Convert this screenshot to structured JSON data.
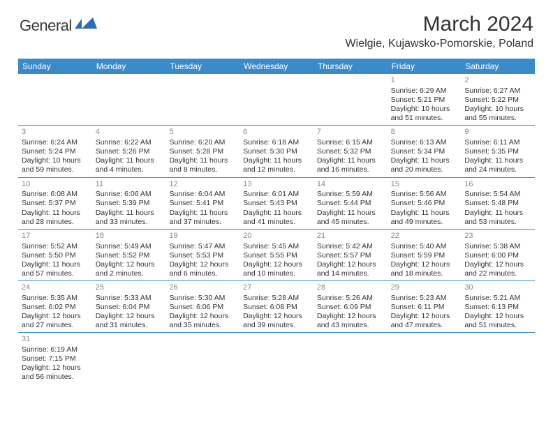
{
  "logo": {
    "text": "General",
    "icon_color": "#2a6db8"
  },
  "title": "March 2024",
  "location": "Wielgie, Kujawsko-Pomorskie, Poland",
  "header_bg": "#3b8bc9",
  "row_border": "#3b8bc9",
  "day_names": [
    "Sunday",
    "Monday",
    "Tuesday",
    "Wednesday",
    "Thursday",
    "Friday",
    "Saturday"
  ],
  "weeks": [
    [
      null,
      null,
      null,
      null,
      null,
      {
        "n": "1",
        "sunrise": "Sunrise: 6:29 AM",
        "sunset": "Sunset: 5:21 PM",
        "day1": "Daylight: 10 hours",
        "day2": "and 51 minutes."
      },
      {
        "n": "2",
        "sunrise": "Sunrise: 6:27 AM",
        "sunset": "Sunset: 5:22 PM",
        "day1": "Daylight: 10 hours",
        "day2": "and 55 minutes."
      }
    ],
    [
      {
        "n": "3",
        "sunrise": "Sunrise: 6:24 AM",
        "sunset": "Sunset: 5:24 PM",
        "day1": "Daylight: 10 hours",
        "day2": "and 59 minutes."
      },
      {
        "n": "4",
        "sunrise": "Sunrise: 6:22 AM",
        "sunset": "Sunset: 5:26 PM",
        "day1": "Daylight: 11 hours",
        "day2": "and 4 minutes."
      },
      {
        "n": "5",
        "sunrise": "Sunrise: 6:20 AM",
        "sunset": "Sunset: 5:28 PM",
        "day1": "Daylight: 11 hours",
        "day2": "and 8 minutes."
      },
      {
        "n": "6",
        "sunrise": "Sunrise: 6:18 AM",
        "sunset": "Sunset: 5:30 PM",
        "day1": "Daylight: 11 hours",
        "day2": "and 12 minutes."
      },
      {
        "n": "7",
        "sunrise": "Sunrise: 6:15 AM",
        "sunset": "Sunset: 5:32 PM",
        "day1": "Daylight: 11 hours",
        "day2": "and 16 minutes."
      },
      {
        "n": "8",
        "sunrise": "Sunrise: 6:13 AM",
        "sunset": "Sunset: 5:34 PM",
        "day1": "Daylight: 11 hours",
        "day2": "and 20 minutes."
      },
      {
        "n": "9",
        "sunrise": "Sunrise: 6:11 AM",
        "sunset": "Sunset: 5:35 PM",
        "day1": "Daylight: 11 hours",
        "day2": "and 24 minutes."
      }
    ],
    [
      {
        "n": "10",
        "sunrise": "Sunrise: 6:08 AM",
        "sunset": "Sunset: 5:37 PM",
        "day1": "Daylight: 11 hours",
        "day2": "and 28 minutes."
      },
      {
        "n": "11",
        "sunrise": "Sunrise: 6:06 AM",
        "sunset": "Sunset: 5:39 PM",
        "day1": "Daylight: 11 hours",
        "day2": "and 33 minutes."
      },
      {
        "n": "12",
        "sunrise": "Sunrise: 6:04 AM",
        "sunset": "Sunset: 5:41 PM",
        "day1": "Daylight: 11 hours",
        "day2": "and 37 minutes."
      },
      {
        "n": "13",
        "sunrise": "Sunrise: 6:01 AM",
        "sunset": "Sunset: 5:43 PM",
        "day1": "Daylight: 11 hours",
        "day2": "and 41 minutes."
      },
      {
        "n": "14",
        "sunrise": "Sunrise: 5:59 AM",
        "sunset": "Sunset: 5:44 PM",
        "day1": "Daylight: 11 hours",
        "day2": "and 45 minutes."
      },
      {
        "n": "15",
        "sunrise": "Sunrise: 5:56 AM",
        "sunset": "Sunset: 5:46 PM",
        "day1": "Daylight: 11 hours",
        "day2": "and 49 minutes."
      },
      {
        "n": "16",
        "sunrise": "Sunrise: 5:54 AM",
        "sunset": "Sunset: 5:48 PM",
        "day1": "Daylight: 11 hours",
        "day2": "and 53 minutes."
      }
    ],
    [
      {
        "n": "17",
        "sunrise": "Sunrise: 5:52 AM",
        "sunset": "Sunset: 5:50 PM",
        "day1": "Daylight: 11 hours",
        "day2": "and 57 minutes."
      },
      {
        "n": "18",
        "sunrise": "Sunrise: 5:49 AM",
        "sunset": "Sunset: 5:52 PM",
        "day1": "Daylight: 12 hours",
        "day2": "and 2 minutes."
      },
      {
        "n": "19",
        "sunrise": "Sunrise: 5:47 AM",
        "sunset": "Sunset: 5:53 PM",
        "day1": "Daylight: 12 hours",
        "day2": "and 6 minutes."
      },
      {
        "n": "20",
        "sunrise": "Sunrise: 5:45 AM",
        "sunset": "Sunset: 5:55 PM",
        "day1": "Daylight: 12 hours",
        "day2": "and 10 minutes."
      },
      {
        "n": "21",
        "sunrise": "Sunrise: 5:42 AM",
        "sunset": "Sunset: 5:57 PM",
        "day1": "Daylight: 12 hours",
        "day2": "and 14 minutes."
      },
      {
        "n": "22",
        "sunrise": "Sunrise: 5:40 AM",
        "sunset": "Sunset: 5:59 PM",
        "day1": "Daylight: 12 hours",
        "day2": "and 18 minutes."
      },
      {
        "n": "23",
        "sunrise": "Sunrise: 5:38 AM",
        "sunset": "Sunset: 6:00 PM",
        "day1": "Daylight: 12 hours",
        "day2": "and 22 minutes."
      }
    ],
    [
      {
        "n": "24",
        "sunrise": "Sunrise: 5:35 AM",
        "sunset": "Sunset: 6:02 PM",
        "day1": "Daylight: 12 hours",
        "day2": "and 27 minutes."
      },
      {
        "n": "25",
        "sunrise": "Sunrise: 5:33 AM",
        "sunset": "Sunset: 6:04 PM",
        "day1": "Daylight: 12 hours",
        "day2": "and 31 minutes."
      },
      {
        "n": "26",
        "sunrise": "Sunrise: 5:30 AM",
        "sunset": "Sunset: 6:06 PM",
        "day1": "Daylight: 12 hours",
        "day2": "and 35 minutes."
      },
      {
        "n": "27",
        "sunrise": "Sunrise: 5:28 AM",
        "sunset": "Sunset: 6:08 PM",
        "day1": "Daylight: 12 hours",
        "day2": "and 39 minutes."
      },
      {
        "n": "28",
        "sunrise": "Sunrise: 5:26 AM",
        "sunset": "Sunset: 6:09 PM",
        "day1": "Daylight: 12 hours",
        "day2": "and 43 minutes."
      },
      {
        "n": "29",
        "sunrise": "Sunrise: 5:23 AM",
        "sunset": "Sunset: 6:11 PM",
        "day1": "Daylight: 12 hours",
        "day2": "and 47 minutes."
      },
      {
        "n": "30",
        "sunrise": "Sunrise: 5:21 AM",
        "sunset": "Sunset: 6:13 PM",
        "day1": "Daylight: 12 hours",
        "day2": "and 51 minutes."
      }
    ],
    [
      {
        "n": "31",
        "sunrise": "Sunrise: 6:19 AM",
        "sunset": "Sunset: 7:15 PM",
        "day1": "Daylight: 12 hours",
        "day2": "and 56 minutes."
      },
      null,
      null,
      null,
      null,
      null,
      null
    ]
  ]
}
